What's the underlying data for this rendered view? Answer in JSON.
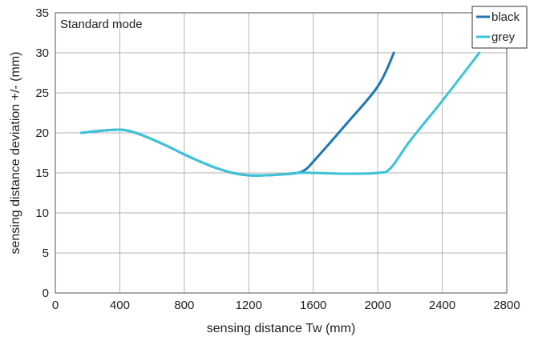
{
  "chart_data": {
    "type": "line",
    "annotation": "Standard mode",
    "xlabel": "sensing distance Tw (mm)",
    "ylabel": "sensing distance deviation +/- (mm)",
    "xlim": [
      0,
      2800
    ],
    "ylim": [
      0,
      35
    ],
    "x_ticks": [
      "0",
      "400",
      "800",
      "1200",
      "1600",
      "2000",
      "2400",
      "2800"
    ],
    "y_ticks": [
      "0",
      "5",
      "10",
      "15",
      "20",
      "25",
      "30",
      "35"
    ],
    "grid": true,
    "legend_position": "top-right",
    "series": [
      {
        "name": "black",
        "color": "#1f78b4",
        "points": [
          [
            160,
            20.0
          ],
          [
            250,
            20.2
          ],
          [
            400,
            20.4
          ],
          [
            500,
            20.0
          ],
          [
            600,
            19.2
          ],
          [
            700,
            18.3
          ],
          [
            800,
            17.3
          ],
          [
            900,
            16.4
          ],
          [
            1000,
            15.6
          ],
          [
            1100,
            15.0
          ],
          [
            1200,
            14.7
          ],
          [
            1300,
            14.7
          ],
          [
            1400,
            14.8
          ],
          [
            1500,
            15.0
          ],
          [
            1550,
            15.4
          ],
          [
            1600,
            16.4
          ],
          [
            1800,
            21.0
          ],
          [
            2000,
            25.8
          ],
          [
            2100,
            30.0
          ]
        ]
      },
      {
        "name": "grey",
        "color": "#3ec3d6",
        "points": [
          [
            160,
            20.0
          ],
          [
            250,
            20.2
          ],
          [
            400,
            20.4
          ],
          [
            500,
            20.0
          ],
          [
            600,
            19.2
          ],
          [
            700,
            18.3
          ],
          [
            800,
            17.3
          ],
          [
            900,
            16.4
          ],
          [
            1000,
            15.6
          ],
          [
            1100,
            15.0
          ],
          [
            1200,
            14.7
          ],
          [
            1300,
            14.7
          ],
          [
            1400,
            14.8
          ],
          [
            1500,
            15.0
          ],
          [
            1600,
            15.0
          ],
          [
            1800,
            14.9
          ],
          [
            2000,
            15.0
          ],
          [
            2080,
            15.6
          ],
          [
            2200,
            19.0
          ],
          [
            2400,
            24.0
          ],
          [
            2630,
            30.0
          ]
        ]
      }
    ]
  }
}
